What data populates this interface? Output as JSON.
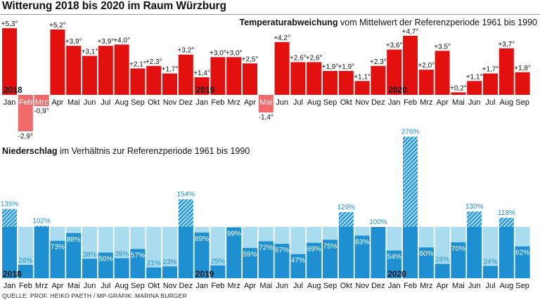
{
  "title": "Witterung 2018 bis 2020 im Raum Würzburg",
  "source": "QUELLE: PROF. HEIKO PAETH / MP-GRAFIK: MARINA BURGER",
  "colors": {
    "temp_positive": "#e2110f",
    "temp_negative": "#f0696b",
    "precip_dark": "#1e8fd1",
    "precip_light": "#a9dcef",
    "precip_label": "#1e8fd1",
    "text": "#111111"
  },
  "chart_data": [
    {
      "type": "bar",
      "title_bold": "Temperaturabweichung",
      "title_rest": " vom Mittelwert der Referenzperiode 1961 bis 1990",
      "categories": [
        "Jan",
        "Feb",
        "Mrz",
        "Apr",
        "Mai",
        "Jun",
        "Jul",
        "Aug",
        "Sep",
        "Okt",
        "Nov",
        "Dez",
        "Jan",
        "Feb",
        "Mrz",
        "Apr",
        "Mai",
        "Jun",
        "Jul",
        "Aug",
        "Sep",
        "Okt",
        "Nov",
        "Dez",
        "Jan",
        "Feb",
        "Mrz",
        "Apr",
        "Mai",
        "Jun",
        "Jul",
        "Aug",
        "Sep"
      ],
      "year_labels": [
        {
          "index": 0,
          "label": "2018"
        },
        {
          "index": 12,
          "label": "2019"
        },
        {
          "index": 24,
          "label": "2020"
        }
      ],
      "values": [
        5.3,
        -2.9,
        -0.9,
        5.2,
        3.9,
        3.1,
        3.9,
        4.0,
        2.1,
        2.3,
        1.7,
        3.2,
        1.4,
        3.0,
        3.0,
        2.5,
        -1.4,
        4.2,
        2.6,
        2.6,
        1.9,
        1.9,
        1.1,
        2.3,
        3.6,
        4.7,
        2.0,
        3.5,
        0.2,
        1.1,
        1.7,
        3.7,
        1.8
      ],
      "labels": [
        "+5,3°",
        "-2,9°",
        "-0,9°",
        "+5,2°",
        "+3,9°",
        "+3,1°",
        "+3,9°",
        "+4,0°",
        "+2,1°",
        "+2,3°",
        "+1,7°",
        "+3,2°",
        "+1,4°",
        "+3,0°",
        "+3,0°",
        "+2,5°",
        "-1,4°",
        "+4,2°",
        "+2,6°",
        "+2,6°",
        "+1,9°",
        "+1,9°",
        "+1,1°",
        "+2,3°",
        "+3,6°",
        "+4,7°",
        "+2,0°",
        "+3,5°",
        "+0,2°",
        "+1,1°",
        "+1,7°",
        "+3,7°",
        "+1,8°"
      ],
      "unit": "°C"
    },
    {
      "type": "bar",
      "title_bold": "Niederschlag",
      "title_rest": " im Verhältnis zur Referenzperiode 1961 bis 1990",
      "categories": [
        "Jan",
        "Feb",
        "Mrz",
        "Apr",
        "Mai",
        "Jun",
        "Jul",
        "Aug",
        "Sep",
        "Okt",
        "Nov",
        "Dez",
        "Jan",
        "Feb",
        "Mrz",
        "Apr",
        "Mai",
        "Jun",
        "Jul",
        "Aug",
        "Sep",
        "Okt",
        "Nov",
        "Dez",
        "Jan",
        "Feb",
        "Mrz",
        "Apr",
        "Mai",
        "Jun",
        "Jul",
        "Aug",
        "Sep"
      ],
      "year_labels": [
        {
          "index": 0,
          "label": "2018"
        },
        {
          "index": 12,
          "label": "2019"
        },
        {
          "index": 24,
          "label": "2020"
        }
      ],
      "values": [
        135,
        26,
        102,
        73,
        88,
        38,
        50,
        39,
        57,
        21,
        23,
        154,
        89,
        25,
        99,
        59,
        72,
        67,
        47,
        69,
        75,
        129,
        83,
        100,
        54,
        276,
        60,
        28,
        70,
        130,
        24,
        118,
        62
      ],
      "labels": [
        "135%",
        "26%",
        "102%",
        "73%",
        "88%",
        "38%",
        "50%",
        "39%",
        "57%",
        "21%",
        "23%",
        "154%",
        "89%",
        "25%",
        "99%",
        "59%",
        "72%",
        "67%",
        "47%",
        "69%",
        "75%",
        "129%",
        "83%",
        "100%",
        "54%",
        "276%",
        "60%",
        "28%",
        "70%",
        "130%",
        "24%",
        "118%",
        "62%"
      ],
      "reference": 100,
      "unit": "%"
    }
  ]
}
